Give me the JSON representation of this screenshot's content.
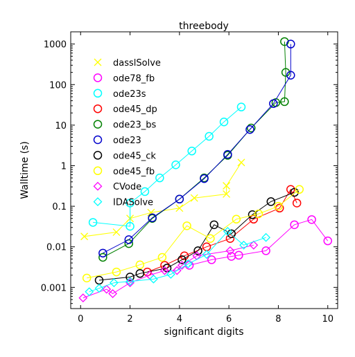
{
  "chart_data": {
    "type": "line",
    "title": "threebody",
    "xlabel": "significant digits",
    "ylabel": "Walltime (s)",
    "xlim": [
      -0.4,
      10.4
    ],
    "ylim": [
      0.0003,
      2000
    ],
    "yscale": "log",
    "xticks": [
      0,
      2,
      4,
      6,
      8,
      10
    ],
    "xtick_labels": [
      "0",
      "2",
      "4",
      "6",
      "8",
      "10"
    ],
    "yticks": [
      0.001,
      0.01,
      0.1,
      1,
      10,
      100,
      1000
    ],
    "ytick_labels": [
      "0.001",
      "0.01",
      "0.1",
      "1",
      "10",
      "100",
      "1000"
    ],
    "legend_position": "upper-left",
    "grid": false,
    "series": [
      {
        "name": "dasslSolve",
        "color": "#ffff00",
        "marker": "x",
        "points": [
          [
            0.15,
            0.018
          ],
          [
            1.45,
            0.023
          ],
          [
            2.0,
            0.05
          ],
          [
            2.85,
            0.07
          ],
          [
            4.0,
            0.09
          ],
          [
            4.6,
            0.16
          ],
          [
            5.9,
            0.2
          ],
          [
            5.9,
            0.32
          ],
          [
            6.5,
            1.2
          ]
        ]
      },
      {
        "name": "ode78_fb",
        "color": "#ff00ff",
        "marker": "o",
        "points": [
          [
            4.4,
            0.0035
          ],
          [
            5.3,
            0.0048
          ],
          [
            6.1,
            0.0058
          ],
          [
            6.4,
            0.0062
          ],
          [
            7.5,
            0.008
          ],
          [
            8.65,
            0.035
          ],
          [
            9.35,
            0.047
          ],
          [
            10.0,
            0.014
          ]
        ]
      },
      {
        "name": "ode23s",
        "color": "#00ffff",
        "marker": "o",
        "points": [
          [
            0.5,
            0.04
          ],
          [
            2.0,
            0.032
          ],
          [
            2.0,
            0.12
          ],
          [
            2.6,
            0.23
          ],
          [
            3.2,
            0.5
          ],
          [
            3.85,
            1.05
          ],
          [
            4.5,
            2.3
          ],
          [
            5.2,
            5.3
          ],
          [
            5.8,
            12
          ],
          [
            6.5,
            28
          ]
        ]
      },
      {
        "name": "ode45_dp",
        "color": "#ff0000",
        "marker": "o",
        "points": [
          [
            2.7,
            0.0024
          ],
          [
            3.4,
            0.0035
          ],
          [
            4.2,
            0.006
          ],
          [
            5.1,
            0.01
          ],
          [
            6.05,
            0.016
          ],
          [
            7.0,
            0.048
          ],
          [
            8.05,
            0.09
          ],
          [
            8.5,
            0.26
          ],
          [
            8.75,
            0.12
          ]
        ]
      },
      {
        "name": "ode23_bs",
        "color": "#008000",
        "marker": "o",
        "points": [
          [
            0.9,
            0.0055
          ],
          [
            1.95,
            0.012
          ],
          [
            2.9,
            0.05
          ],
          [
            4.0,
            0.15
          ],
          [
            5.0,
            0.5
          ],
          [
            5.95,
            1.8
          ],
          [
            6.9,
            8.5
          ],
          [
            7.9,
            36
          ],
          [
            8.25,
            38
          ],
          [
            8.3,
            200
          ],
          [
            8.25,
            1150
          ]
        ]
      },
      {
        "name": "ode23",
        "color": "#0000cc",
        "marker": "o",
        "points": [
          [
            0.9,
            0.007
          ],
          [
            1.95,
            0.015
          ],
          [
            2.9,
            0.052
          ],
          [
            4.0,
            0.15
          ],
          [
            5.0,
            0.48
          ],
          [
            5.95,
            1.9
          ],
          [
            6.85,
            7.8
          ],
          [
            7.8,
            34
          ],
          [
            8.5,
            170
          ],
          [
            8.5,
            1000
          ]
        ]
      },
      {
        "name": "ode45_ck",
        "color": "#000000",
        "marker": "o",
        "points": [
          [
            0.75,
            0.0015
          ],
          [
            2.0,
            0.0018
          ],
          [
            2.4,
            0.0022
          ],
          [
            3.5,
            0.003
          ],
          [
            4.1,
            0.0048
          ],
          [
            4.75,
            0.008
          ],
          [
            5.4,
            0.035
          ],
          [
            6.1,
            0.021
          ],
          [
            6.95,
            0.062
          ],
          [
            7.7,
            0.13
          ],
          [
            8.65,
            0.22
          ]
        ]
      },
      {
        "name": "ode45_fb",
        "color": "#ffff00",
        "marker": "o",
        "points": [
          [
            0.25,
            0.0017
          ],
          [
            1.45,
            0.0024
          ],
          [
            2.4,
            0.0036
          ],
          [
            3.3,
            0.0055
          ],
          [
            4.3,
            0.033
          ],
          [
            5.25,
            0.016
          ],
          [
            6.3,
            0.048
          ],
          [
            7.2,
            0.065
          ],
          [
            8.0,
            0.1
          ],
          [
            8.85,
            0.26
          ]
        ]
      },
      {
        "name": "CVode",
        "color": "#ff00ff",
        "marker": "d",
        "points": [
          [
            0.1,
            0.00055
          ],
          [
            1.05,
            0.0009
          ],
          [
            1.3,
            0.0007
          ],
          [
            2.0,
            0.0013
          ],
          [
            2.8,
            0.002
          ],
          [
            3.4,
            0.0026
          ],
          [
            3.9,
            0.0026
          ],
          [
            4.1,
            0.0035
          ],
          [
            4.7,
            0.006
          ],
          [
            6.05,
            0.008
          ],
          [
            7.0,
            0.011
          ]
        ]
      },
      {
        "name": "IDASolve",
        "color": "#00ffff",
        "marker": "d",
        "points": [
          [
            0.35,
            0.00078
          ],
          [
            0.75,
            0.00095
          ],
          [
            1.35,
            0.0013
          ],
          [
            2.0,
            0.0014
          ],
          [
            2.95,
            0.0016
          ],
          [
            3.65,
            0.0021
          ],
          [
            4.35,
            0.0038
          ],
          [
            5.1,
            0.0065
          ],
          [
            5.95,
            0.024
          ],
          [
            6.6,
            0.011
          ],
          [
            7.5,
            0.017
          ]
        ]
      }
    ]
  }
}
